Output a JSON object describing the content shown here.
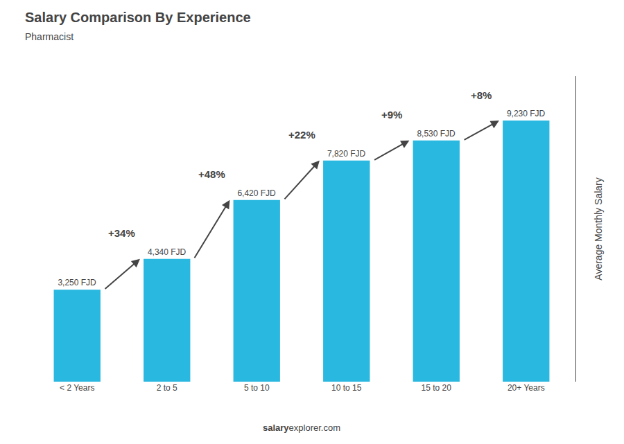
{
  "chart_data": {
    "type": "bar",
    "title": "Salary Comparison By Experience",
    "subtitle": "Pharmacist",
    "categories": [
      "< 2 Years",
      "2 to 5",
      "5 to 10",
      "10 to 15",
      "15 to 20",
      "20+ Years"
    ],
    "values": [
      3250,
      4340,
      6420,
      7820,
      8530,
      9230
    ],
    "value_labels": [
      "3,250 FJD",
      "4,340 FJD",
      "6,420 FJD",
      "7,820 FJD",
      "8,530 FJD",
      "9,230 FJD"
    ],
    "data_labels": true,
    "color": "#29b8e0",
    "ylabel": "Average Monthly Salary",
    "ylim": [
      0,
      10800
    ],
    "tick_labels": "x",
    "grid": false,
    "annotations": [
      "+34%",
      "+48%",
      "+22%",
      "+9%",
      "+8%"
    ],
    "footer": [
      "salary",
      "explorer.com"
    ]
  }
}
